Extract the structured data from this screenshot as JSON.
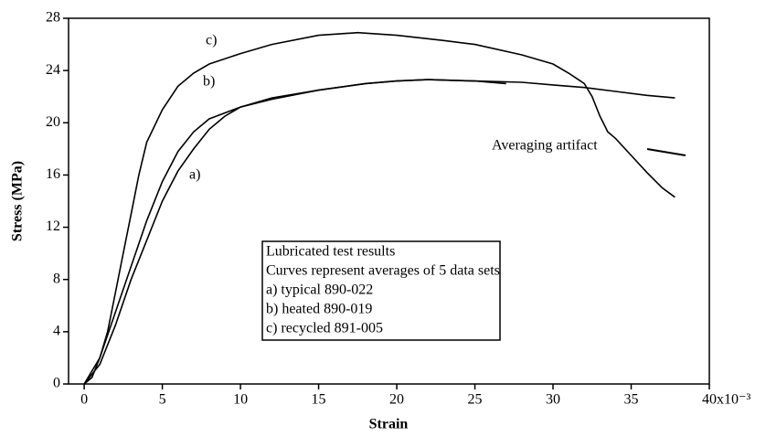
{
  "chart_data": {
    "type": "line",
    "xlabel": "Strain",
    "ylabel": "Stress (MPa)",
    "xlim": [
      -1,
      40
    ],
    "ylim": [
      0,
      28
    ],
    "xticks": [
      0,
      5,
      10,
      15,
      20,
      25,
      30,
      35,
      {
        "value": 40,
        "label": "40x10⁻³"
      }
    ],
    "yticks": [
      0,
      4,
      8,
      12,
      16,
      20,
      24,
      28
    ],
    "legend_title": [
      "Lubricated test results",
      "Curves represent averages of 5 data sets"
    ],
    "series": [
      {
        "name": "a) typical 890-022",
        "color": "#000000",
        "x": [
          0,
          1,
          2,
          3,
          4,
          5,
          6,
          7,
          8,
          9,
          10,
          12,
          15,
          18,
          20,
          22,
          25,
          28,
          30,
          32,
          34,
          36,
          37.8
        ],
        "values": [
          0,
          1.5,
          4.5,
          8,
          11,
          14,
          16.3,
          18,
          19.5,
          20.5,
          21.2,
          21.9,
          22.5,
          23,
          23.2,
          23.3,
          23.2,
          23.1,
          22.9,
          22.7,
          22.4,
          22.1,
          21.9
        ]
      },
      {
        "name": "b) heated  890-019",
        "color": "#000000",
        "x": [
          0,
          1,
          2,
          3,
          4,
          5,
          6,
          7,
          8,
          10,
          12,
          15,
          18,
          20,
          22,
          25,
          27
        ],
        "values": [
          0,
          2,
          5.5,
          9,
          12.5,
          15.5,
          17.8,
          19.3,
          20.3,
          21.2,
          21.8,
          22.5,
          23,
          23.2,
          23.3,
          23.2,
          23
        ]
      },
      {
        "name": "c) recycled 891-005",
        "color": "#000000",
        "x": [
          0,
          0.5,
          1,
          1.5,
          2,
          2.5,
          3,
          3.5,
          4,
          5,
          6,
          7,
          8,
          10,
          12,
          15,
          17.5,
          20,
          23,
          25,
          28,
          30,
          31,
          32,
          32.5,
          33,
          33.3,
          33.5,
          34,
          35,
          36,
          37,
          37.8
        ],
        "values": [
          0,
          0.5,
          2,
          4,
          7,
          10,
          13,
          16,
          18.5,
          21,
          22.8,
          23.8,
          24.5,
          25.3,
          26,
          26.7,
          26.9,
          26.7,
          26.3,
          26,
          25.2,
          24.5,
          23.8,
          23,
          22,
          20.5,
          19.8,
          19.3,
          18.8,
          17.5,
          16.2,
          15,
          14.3
        ]
      }
    ],
    "annotations": [
      "a)",
      "b)",
      "c)",
      "Averaging artifact"
    ]
  }
}
